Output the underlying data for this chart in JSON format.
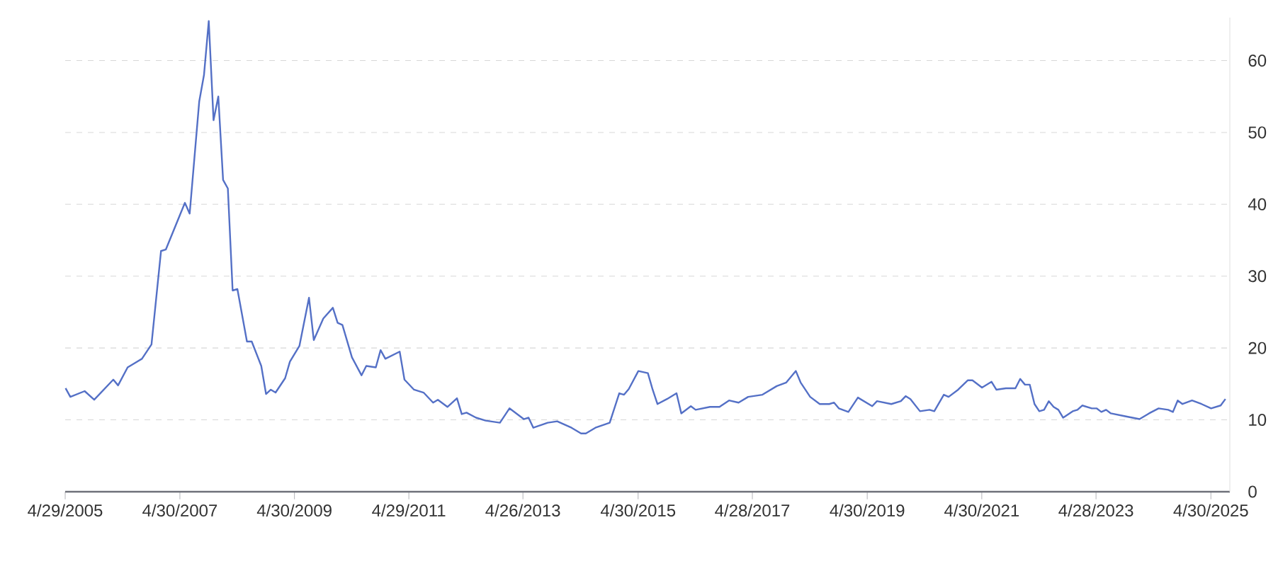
{
  "chart_data": {
    "type": "line",
    "color": "#5470c6",
    "line_style": "solid",
    "grid": "y",
    "x": [
      "2005-05",
      "2005-06",
      "2005-09",
      "2005-11",
      "2006-03",
      "2006-04",
      "2006-06",
      "2006-09",
      "2006-11",
      "2007-01",
      "2007-02",
      "2007-06",
      "2007-07",
      "2007-09",
      "2007-10",
      "2007-11",
      "2007-12",
      "2008-01",
      "2008-02",
      "2008-03",
      "2008-04",
      "2008-05",
      "2008-07",
      "2008-08",
      "2008-10",
      "2008-11",
      "2008-12",
      "2009-01",
      "2009-03",
      "2009-04",
      "2009-06",
      "2009-08",
      "2009-09",
      "2009-11",
      "2010-01",
      "2010-02",
      "2010-03",
      "2010-05",
      "2010-07",
      "2010-08",
      "2010-10",
      "2010-11",
      "2010-12",
      "2011-03",
      "2011-04",
      "2011-06",
      "2011-08",
      "2011-10",
      "2011-11",
      "2012-01",
      "2012-03",
      "2012-04",
      "2012-05",
      "2012-07",
      "2012-09",
      "2012-12",
      "2013-02",
      "2013-05",
      "2013-06",
      "2013-07",
      "2013-10",
      "2013-12",
      "2014-03",
      "2014-05",
      "2014-06",
      "2014-08",
      "2014-11",
      "2015-01",
      "2015-02",
      "2015-03",
      "2015-05",
      "2015-07",
      "2015-08",
      "2015-09",
      "2015-11",
      "2016-01",
      "2016-02",
      "2016-04",
      "2016-05",
      "2016-08",
      "2016-10",
      "2016-12",
      "2017-02",
      "2017-04",
      "2017-07",
      "2017-10",
      "2017-12",
      "2018-02",
      "2018-03",
      "2018-05",
      "2018-07",
      "2018-09",
      "2018-10",
      "2018-11",
      "2019-01",
      "2019-03",
      "2019-06",
      "2019-07",
      "2019-10",
      "2019-12",
      "2020-01",
      "2020-02",
      "2020-04",
      "2020-06",
      "2020-07",
      "2020-09",
      "2020-10",
      "2020-12",
      "2021-02",
      "2021-03",
      "2021-05",
      "2021-07",
      "2021-08",
      "2021-10",
      "2021-12",
      "2022-01",
      "2022-02",
      "2022-03",
      "2022-04",
      "2022-05",
      "2022-06",
      "2022-07",
      "2022-08",
      "2022-09",
      "2022-10",
      "2022-12",
      "2023-01",
      "2023-02",
      "2023-04",
      "2023-05",
      "2023-06",
      "2023-07",
      "2023-08",
      "2023-11",
      "2024-02",
      "2024-04",
      "2024-06",
      "2024-08",
      "2024-09",
      "2024-10",
      "2024-11",
      "2025-01",
      "2025-03",
      "2025-05",
      "2025-07",
      "2025-08"
    ],
    "values": [
      14.4,
      13.2,
      14.0,
      12.8,
      15.6,
      14.8,
      17.3,
      18.5,
      20.5,
      33.5,
      33.7,
      40.2,
      38.7,
      54.3,
      58,
      65.5,
      51.7,
      55,
      43.4,
      42.2,
      28,
      28.2,
      20.9,
      20.9,
      17.5,
      13.6,
      14.2,
      13.8,
      15.8,
      18.1,
      20.3,
      27,
      21.1,
      24.1,
      25.6,
      23.5,
      23.2,
      18.7,
      16.2,
      17.5,
      17.3,
      19.7,
      18.5,
      19.5,
      15.6,
      14.2,
      13.8,
      12.4,
      12.8,
      11.8,
      13,
      10.8,
      11,
      10.3,
      9.9,
      9.6,
      11.6,
      10.1,
      10.3,
      8.9,
      9.6,
      9.8,
      8.9,
      8.1,
      8.1,
      8.9,
      9.6,
      13.7,
      13.5,
      14.3,
      16.8,
      16.5,
      14.2,
      12.2,
      12.9,
      13.7,
      10.9,
      11.9,
      11.4,
      11.8,
      11.8,
      12.7,
      12.4,
      13.2,
      13.5,
      14.7,
      15.2,
      16.8,
      15.2,
      13.2,
      12.2,
      12.2,
      12.4,
      11.6,
      11.1,
      13.1,
      11.9,
      12.6,
      12.2,
      12.6,
      13.3,
      12.9,
      11.2,
      11.4,
      11.2,
      13.5,
      13.2,
      14.2,
      15.5,
      15.5,
      14.5,
      15.3,
      14.2,
      14.4,
      14.4,
      15.7,
      14.9,
      14.9,
      12.2,
      11.2,
      11.4,
      12.6,
      11.8,
      11.4,
      10.3,
      11.2,
      11.4,
      12.0,
      11.6,
      11.6,
      11.1,
      11.4,
      10.9,
      10.5,
      10.1,
      10.9,
      11.6,
      11.4,
      11.1,
      12.7,
      12.2,
      12.7,
      12.2,
      11.6,
      12.0,
      12.9
    ],
    "xlim": [
      "2005-04-29",
      "2025-08-29"
    ],
    "xticks": [
      {
        "value": "2005-04-29",
        "label": "4/29/2005"
      },
      {
        "value": "2007-04-30",
        "label": "4/30/2007"
      },
      {
        "value": "2009-04-30",
        "label": "4/30/2009"
      },
      {
        "value": "2011-04-29",
        "label": "4/29/2011"
      },
      {
        "value": "2013-04-26",
        "label": "4/26/2013"
      },
      {
        "value": "2015-04-30",
        "label": "4/30/2015"
      },
      {
        "value": "2017-04-28",
        "label": "4/28/2017"
      },
      {
        "value": "2019-04-30",
        "label": "4/30/2019"
      },
      {
        "value": "2021-04-30",
        "label": "4/30/2021"
      },
      {
        "value": "2023-04-28",
        "label": "4/28/2023"
      },
      {
        "value": "2025-04-30",
        "label": "4/30/2025"
      }
    ],
    "ylim": [
      0,
      66
    ],
    "yticks": [
      0,
      10,
      20,
      30,
      40,
      50,
      60
    ]
  }
}
